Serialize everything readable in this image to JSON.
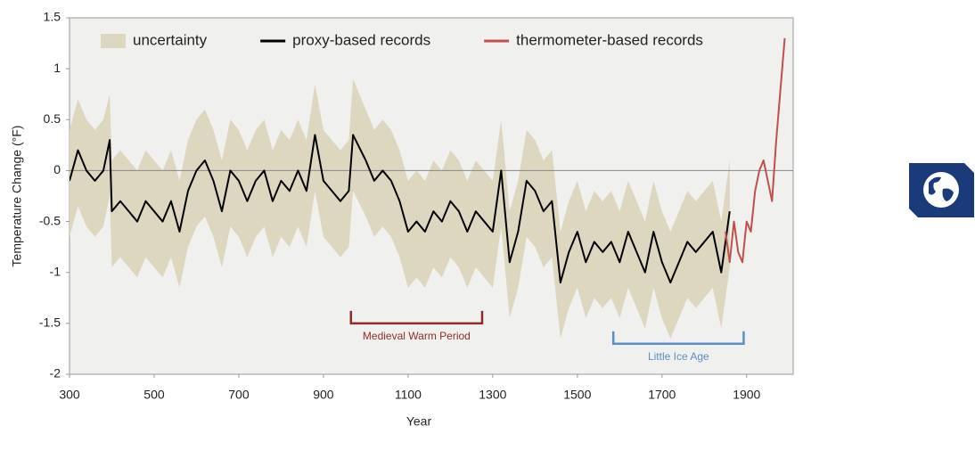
{
  "chart_data": {
    "type": "line",
    "xlabel": "Year",
    "ylabel": "Temperature Change (°F)",
    "xlim": [
      300,
      2010
    ],
    "ylim": [
      -2,
      1.5
    ],
    "xticks": [
      300,
      500,
      700,
      900,
      1100,
      1300,
      1500,
      1700,
      1900
    ],
    "yticks": [
      -2,
      -1.5,
      -1,
      -0.5,
      0,
      0.5,
      1,
      1.5
    ],
    "reference_line": 0,
    "grid": false,
    "legend": "top",
    "series": [
      {
        "name": "uncertainty",
        "kind": "band",
        "color": "#ddd7bf",
        "x": [
          300,
          320,
          340,
          360,
          380,
          395,
          400,
          420,
          440,
          460,
          480,
          500,
          520,
          540,
          560,
          580,
          600,
          620,
          640,
          660,
          680,
          700,
          720,
          740,
          760,
          780,
          800,
          820,
          840,
          860,
          880,
          900,
          920,
          940,
          960,
          970,
          1000,
          1020,
          1040,
          1060,
          1080,
          1100,
          1120,
          1140,
          1160,
          1180,
          1200,
          1220,
          1240,
          1260,
          1280,
          1300,
          1320,
          1340,
          1360,
          1380,
          1400,
          1420,
          1440,
          1460,
          1480,
          1500,
          1520,
          1540,
          1560,
          1580,
          1600,
          1620,
          1640,
          1660,
          1680,
          1700,
          1720,
          1740,
          1760,
          1780,
          1800,
          1820,
          1840,
          1860
        ],
        "upper": [
          0.4,
          0.7,
          0.5,
          0.4,
          0.5,
          0.75,
          0.1,
          0.2,
          0.1,
          0.0,
          0.2,
          0.1,
          0.0,
          0.2,
          -0.1,
          0.3,
          0.5,
          0.6,
          0.4,
          0.1,
          0.5,
          0.4,
          0.2,
          0.4,
          0.5,
          0.2,
          0.4,
          0.3,
          0.5,
          0.3,
          0.85,
          0.4,
          0.3,
          0.2,
          0.3,
          0.9,
          0.6,
          0.4,
          0.5,
          0.4,
          0.2,
          -0.1,
          0.0,
          -0.1,
          0.1,
          0.0,
          0.2,
          0.1,
          -0.1,
          0.1,
          0.0,
          -0.1,
          0.5,
          -0.4,
          -0.1,
          0.4,
          0.3,
          0.1,
          0.2,
          -0.6,
          -0.3,
          -0.1,
          -0.4,
          -0.2,
          -0.3,
          -0.2,
          -0.4,
          -0.1,
          -0.3,
          -0.5,
          -0.1,
          -0.4,
          -0.6,
          -0.4,
          -0.2,
          -0.3,
          -0.2,
          -0.1,
          -0.5,
          0.1
        ],
        "lower": [
          -0.65,
          -0.35,
          -0.55,
          -0.65,
          -0.55,
          -0.25,
          -0.95,
          -0.85,
          -0.95,
          -1.05,
          -0.85,
          -0.95,
          -1.05,
          -0.85,
          -1.15,
          -0.75,
          -0.55,
          -0.45,
          -0.65,
          -0.95,
          -0.55,
          -0.65,
          -0.85,
          -0.65,
          -0.55,
          -0.85,
          -0.65,
          -0.75,
          -0.55,
          -0.75,
          -0.2,
          -0.65,
          -0.75,
          -0.85,
          -0.75,
          -0.2,
          -0.45,
          -0.65,
          -0.55,
          -0.65,
          -0.85,
          -1.15,
          -1.05,
          -1.15,
          -0.95,
          -1.05,
          -0.85,
          -0.95,
          -1.15,
          -0.95,
          -1.05,
          -1.15,
          -0.55,
          -1.45,
          -1.15,
          -0.65,
          -0.75,
          -0.95,
          -0.85,
          -1.65,
          -1.35,
          -1.15,
          -1.45,
          -1.25,
          -1.35,
          -1.25,
          -1.45,
          -1.15,
          -1.35,
          -1.55,
          -1.15,
          -1.45,
          -1.65,
          -1.45,
          -1.25,
          -1.35,
          -1.25,
          -1.15,
          -1.55,
          -0.95
        ]
      },
      {
        "name": "proxy-based records",
        "color": "#000000",
        "x": [
          300,
          320,
          340,
          360,
          380,
          395,
          400,
          420,
          440,
          460,
          480,
          500,
          520,
          540,
          560,
          580,
          600,
          620,
          640,
          660,
          680,
          700,
          720,
          740,
          760,
          780,
          800,
          820,
          840,
          860,
          880,
          900,
          920,
          940,
          960,
          970,
          1000,
          1020,
          1040,
          1060,
          1080,
          1100,
          1120,
          1140,
          1160,
          1180,
          1200,
          1220,
          1240,
          1260,
          1280,
          1300,
          1320,
          1340,
          1360,
          1380,
          1400,
          1420,
          1440,
          1460,
          1480,
          1500,
          1520,
          1540,
          1560,
          1580,
          1600,
          1620,
          1640,
          1660,
          1680,
          1700,
          1720,
          1740,
          1760,
          1780,
          1800,
          1820,
          1840,
          1860
        ],
        "values": [
          -0.1,
          0.2,
          0.0,
          -0.1,
          0.0,
          0.3,
          -0.4,
          -0.3,
          -0.4,
          -0.5,
          -0.3,
          -0.4,
          -0.5,
          -0.3,
          -0.6,
          -0.2,
          0.0,
          0.1,
          -0.1,
          -0.4,
          0.0,
          -0.1,
          -0.3,
          -0.1,
          0.0,
          -0.3,
          -0.1,
          -0.2,
          0.0,
          -0.2,
          0.35,
          -0.1,
          -0.2,
          -0.3,
          -0.2,
          0.35,
          0.1,
          -0.1,
          0.0,
          -0.1,
          -0.3,
          -0.6,
          -0.5,
          -0.6,
          -0.4,
          -0.5,
          -0.3,
          -0.4,
          -0.6,
          -0.4,
          -0.5,
          -0.6,
          0.0,
          -0.9,
          -0.6,
          -0.1,
          -0.2,
          -0.4,
          -0.3,
          -1.1,
          -0.8,
          -0.6,
          -0.9,
          -0.7,
          -0.8,
          -0.7,
          -0.9,
          -0.6,
          -0.8,
          -1.0,
          -0.6,
          -0.9,
          -1.1,
          -0.9,
          -0.7,
          -0.8,
          -0.7,
          -0.6,
          -1.0,
          -0.4
        ]
      },
      {
        "name": "thermometer-based records",
        "color": "#c0504d",
        "x": [
          1850,
          1860,
          1870,
          1880,
          1890,
          1900,
          1910,
          1920,
          1930,
          1940,
          1950,
          1960,
          1970,
          1980,
          1990
        ],
        "values": [
          -0.6,
          -0.9,
          -0.5,
          -0.8,
          -0.9,
          -0.5,
          -0.6,
          -0.2,
          0.0,
          0.1,
          -0.1,
          -0.3,
          0.3,
          0.8,
          1.3
        ]
      }
    ],
    "annotations": [
      {
        "text": "Medieval Warm Period",
        "x": [
          965,
          1275
        ],
        "y": -1.5,
        "color": "#8b2e2b"
      },
      {
        "text": "Little Ice Age",
        "x": [
          1585,
          1893
        ],
        "y": -1.7,
        "color": "#5b8fc9"
      }
    ]
  }
}
